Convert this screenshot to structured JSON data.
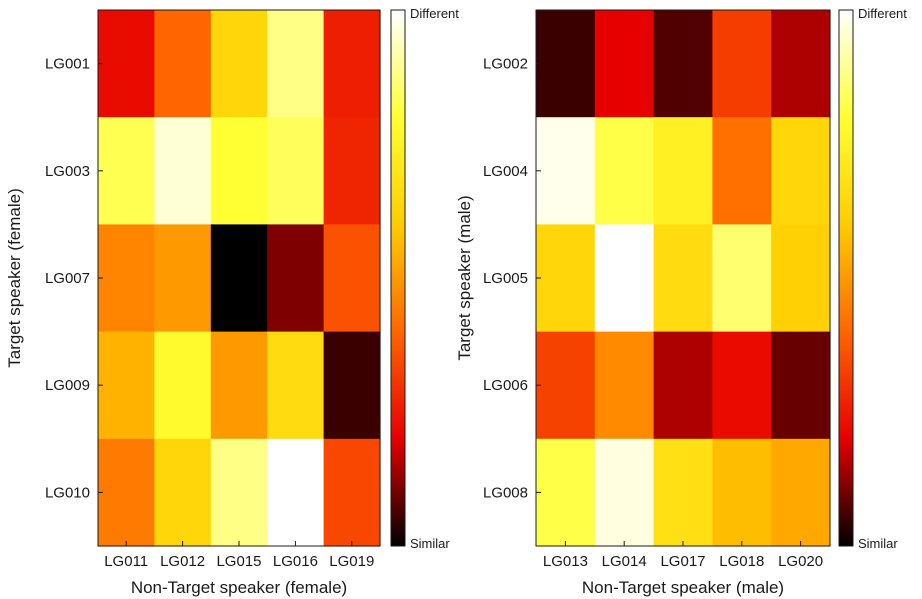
{
  "colors": {
    "colormap": "hot",
    "stops": [
      "#000000",
      "#e60000",
      "#ff6600",
      "#ffcc00",
      "#ffff33",
      "#ffffff"
    ],
    "frame": "#1a1a1a"
  },
  "chart_data": [
    {
      "type": "heatmap",
      "x": [
        "LG011",
        "LG012",
        "LG015",
        "LG016",
        "LG019"
      ],
      "y": [
        "LG001",
        "LG003",
        "LG007",
        "LG009",
        "LG010"
      ],
      "xlabel": "Non-Target speaker (female)",
      "ylabel": "Target speaker (female)",
      "z": [
        [
          0.22,
          0.4,
          0.64,
          0.88,
          0.26
        ],
        [
          0.83,
          0.96,
          0.8,
          0.84,
          0.27
        ],
        [
          0.46,
          0.5,
          0.0,
          0.11,
          0.36
        ],
        [
          0.55,
          0.78,
          0.5,
          0.66,
          0.05
        ],
        [
          0.44,
          0.64,
          0.88,
          1.0,
          0.34
        ]
      ],
      "colorbar": {
        "min": 0,
        "max": 1,
        "top_label": "Different",
        "bottom_label": "Similar"
      }
    },
    {
      "type": "heatmap",
      "x": [
        "LG013",
        "LG014",
        "LG017",
        "LG018",
        "LG020"
      ],
      "y": [
        "LG002",
        "LG004",
        "LG005",
        "LG006",
        "LG008"
      ],
      "xlabel": "Non-Target speaker (male)",
      "ylabel": "Target speaker (male)",
      "z": [
        [
          0.05,
          0.2,
          0.07,
          0.32,
          0.15
        ],
        [
          0.98,
          0.82,
          0.74,
          0.42,
          0.64
        ],
        [
          0.64,
          1.0,
          0.66,
          0.86,
          0.62
        ],
        [
          0.33,
          0.47,
          0.15,
          0.22,
          0.09
        ],
        [
          0.82,
          0.97,
          0.68,
          0.57,
          0.53
        ]
      ],
      "colorbar": {
        "min": 0,
        "max": 1,
        "top_label": "Different",
        "bottom_label": "Similar"
      }
    }
  ]
}
